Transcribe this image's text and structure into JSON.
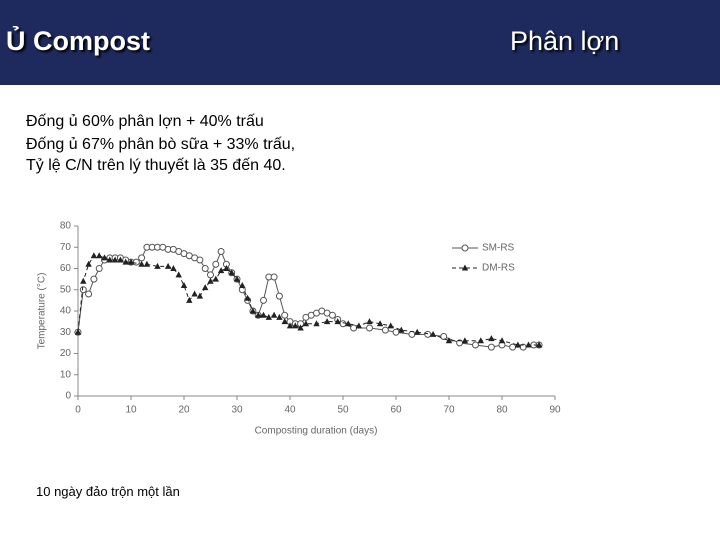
{
  "slide": {
    "title": "Ủ Compost",
    "topic": "Phân lợn",
    "lines": [
      "Đống ủ 60% phân lợn + 40% trấu",
      "Đống ủ 67% phân bò sữa + 33% trấu,",
      "Tỷ lệ C/N trên lý thuyết là 35 đến 40."
    ],
    "note": "10 ngày đảo trộn một lần"
  },
  "chart_data": {
    "type": "line",
    "xlabel": "Composting duration (days)",
    "ylabel": "Temperature (°C)",
    "xlim": [
      0,
      90
    ],
    "ylim": [
      0,
      80
    ],
    "xticks": [
      0,
      10,
      20,
      30,
      40,
      50,
      60,
      70,
      80,
      90
    ],
    "yticks": [
      0,
      10,
      20,
      30,
      40,
      50,
      60,
      70,
      80
    ],
    "legend": "upper right",
    "series": [
      {
        "name": "SM-RS",
        "color": "#555555",
        "marker": "circle",
        "line_style": "solid",
        "x": [
          0,
          1,
          2,
          3,
          4,
          5,
          6,
          7,
          8,
          9,
          10,
          11,
          12,
          13,
          14,
          15,
          16,
          17,
          18,
          19,
          20,
          21,
          22,
          23,
          24,
          25,
          26,
          27,
          28,
          29,
          30,
          31,
          32,
          33,
          34,
          35,
          36,
          37,
          38,
          39,
          40,
          41,
          42,
          43,
          44,
          45,
          46,
          47,
          48,
          49,
          50,
          52,
          55,
          58,
          60,
          63,
          66,
          69,
          72,
          75,
          78,
          80,
          82,
          84,
          86,
          87
        ],
        "values": [
          30,
          50,
          48,
          55,
          60,
          64,
          65,
          65,
          65,
          64,
          63,
          63,
          65,
          70,
          70,
          70,
          70,
          69,
          69,
          68,
          67,
          66,
          65,
          64,
          60,
          57,
          62,
          68,
          62,
          58,
          55,
          50,
          45,
          40,
          38,
          45,
          56,
          56,
          47,
          38,
          35,
          34,
          34,
          37,
          38,
          39,
          40,
          39,
          38,
          36,
          34,
          32,
          32,
          31,
          30,
          29,
          29,
          28,
          25,
          24,
          23,
          24,
          23,
          23,
          24,
          24
        ]
      },
      {
        "name": "DM-RS",
        "color": "#222222",
        "marker": "triangle",
        "line_style": "dashed",
        "x": [
          0,
          1,
          2,
          3,
          4,
          5,
          6,
          7,
          8,
          9,
          10,
          12,
          13,
          15,
          17,
          18,
          19,
          20,
          21,
          22,
          23,
          24,
          25,
          26,
          27,
          28,
          29,
          30,
          31,
          32,
          33,
          34,
          35,
          36,
          37,
          38,
          39,
          40,
          41,
          42,
          43,
          45,
          47,
          49,
          51,
          53,
          55,
          57,
          59,
          61,
          64,
          67,
          70,
          73,
          76,
          78,
          80,
          83,
          85,
          87
        ],
        "values": [
          30,
          54,
          62,
          66,
          66,
          65,
          64,
          64,
          64,
          63,
          63,
          62,
          62,
          61,
          61,
          60,
          57,
          52,
          45,
          48,
          47,
          51,
          54,
          55,
          59,
          60,
          58,
          55,
          52,
          46,
          40,
          38,
          38,
          37,
          38,
          37,
          35,
          33,
          33,
          32,
          34,
          34,
          35,
          35,
          34,
          33,
          35,
          34,
          33,
          31,
          30,
          29,
          26,
          26,
          26,
          27,
          26,
          24,
          24,
          24
        ]
      }
    ]
  }
}
